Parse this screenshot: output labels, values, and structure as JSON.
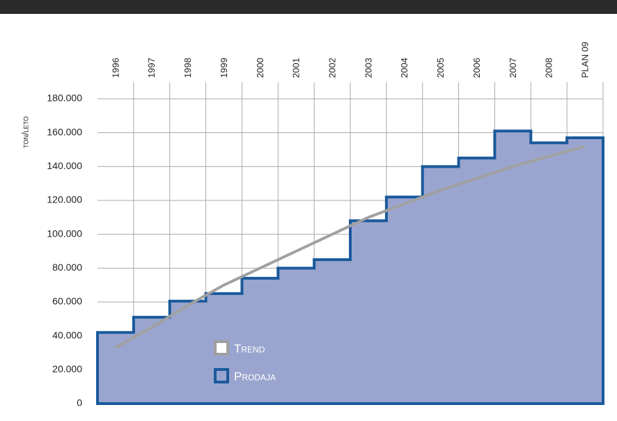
{
  "chart_data": {
    "type": "step-area",
    "y_label": "ton/leto",
    "categories": [
      "1996",
      "1997",
      "1998",
      "1999",
      "2000",
      "2001",
      "2002",
      "2003",
      "2004",
      "2005",
      "2006",
      "2007",
      "2008",
      "PLAN 09"
    ],
    "series": [
      {
        "name": "Prodaja",
        "color": "#9aa5cf",
        "stroke": "#1a5a9c",
        "values": [
          42000,
          51000,
          60500,
          65000,
          74000,
          80000,
          85000,
          108000,
          122000,
          140000,
          145000,
          161000,
          154000,
          157000
        ]
      },
      {
        "name": "Trend",
        "color": "#a0a0a0",
        "values": [
          33000,
          45000,
          58000,
          70000,
          80000,
          90000,
          100000,
          110000,
          118000,
          126000,
          133000,
          140000,
          146000,
          152000
        ]
      }
    ],
    "ylim": [
      0,
      180000
    ],
    "yticks": [
      0,
      {
        "value": 20000,
        "label": "20.000"
      },
      {
        "value": 40000,
        "label": "40.000"
      },
      {
        "value": 60000,
        "label": "60.000"
      },
      {
        "value": 80000,
        "label": "80.000"
      },
      {
        "value": 100000,
        "label": "100.000"
      },
      {
        "value": 120000,
        "label": "120.000"
      },
      {
        "value": 140000,
        "label": "140.000"
      },
      {
        "value": 160000,
        "label": "160.000"
      },
      {
        "value": 180000,
        "label": "180.000"
      }
    ],
    "grid": true
  }
}
